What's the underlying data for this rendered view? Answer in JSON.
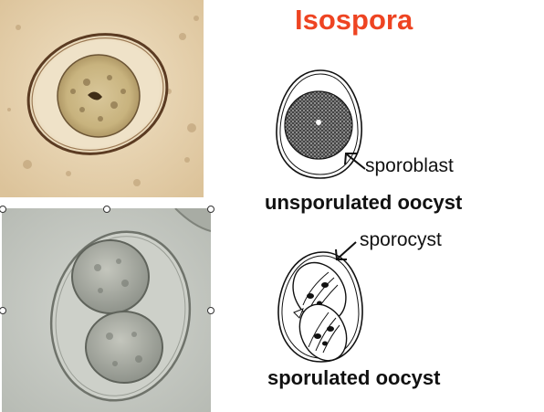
{
  "title": "Isospora",
  "colors": {
    "title": "#ee4422",
    "text": "#111111",
    "photo_top_bg": "#e9d6b5",
    "photo_bottom_bg": "#c7cac4"
  },
  "diagram_top": {
    "pointer_label": "sporoblast",
    "caption": "unsporulated oocyst"
  },
  "diagram_bottom": {
    "pointer_label": "sporocyst",
    "caption": "sporulated oocyst"
  },
  "photos": {
    "top": "unsporulated-oocyst-micrograph",
    "bottom": "sporulated-oocyst-micrograph"
  }
}
